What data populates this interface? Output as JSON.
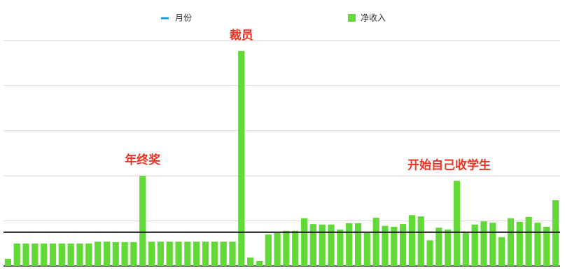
{
  "chart_data": {
    "type": "bar",
    "legend": {
      "line_name": "月份",
      "line_color": "#1a9fd9"
    },
    "series": [
      {
        "name": "净收入",
        "color": "#63d938",
        "values": [
          0.16,
          0.5,
          0.5,
          0.5,
          0.5,
          0.5,
          0.5,
          0.5,
          0.5,
          0.5,
          0.54,
          0.54,
          0.53,
          0.53,
          0.53,
          2.0,
          0.54,
          0.54,
          0.54,
          0.54,
          0.54,
          0.54,
          0.54,
          0.54,
          0.54,
          0.54,
          4.77,
          0.19,
          0.11,
          0.7,
          0.73,
          0.78,
          0.78,
          1.06,
          0.93,
          0.92,
          0.92,
          0.81,
          0.95,
          0.95,
          0.73,
          1.07,
          0.89,
          0.87,
          0.93,
          1.13,
          1.1,
          0.57,
          0.85,
          0.81,
          1.89,
          0.73,
          0.92,
          0.99,
          0.96,
          0.64,
          1.06,
          0.98,
          1.09,
          0.96,
          0.87,
          1.46
        ]
      }
    ],
    "categories": [
      null,
      null,
      null,
      null,
      null,
      null,
      null,
      null,
      null,
      null,
      null,
      null,
      null,
      null,
      null,
      null,
      null,
      null,
      null,
      null,
      null,
      null,
      null,
      null,
      null,
      null,
      null,
      null,
      null,
      null,
      null,
      null,
      null,
      null,
      null,
      null,
      null,
      null,
      null,
      null,
      null,
      null,
      null,
      null,
      null,
      null,
      null,
      null,
      null,
      null,
      null,
      null,
      null,
      null,
      null,
      null,
      null,
      null,
      null,
      null,
      null,
      null
    ],
    "reference_line": 0.75,
    "annotations": [
      "年终奖",
      "裁员",
      "开始自己收学生"
    ],
    "ylim": [
      0,
      5
    ],
    "yticks": [
      0,
      1,
      2,
      3,
      4,
      5
    ],
    "grid": true
  }
}
